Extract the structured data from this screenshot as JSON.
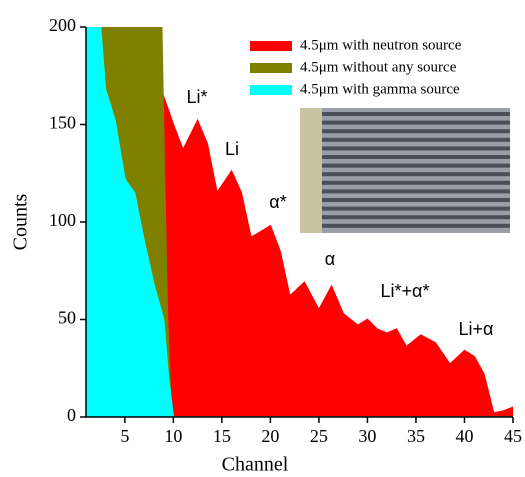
{
  "chart_data": {
    "type": "area",
    "xlabel": "Channel",
    "ylabel": "Counts",
    "xlim": [
      1,
      45
    ],
    "ylim": [
      0,
      200
    ],
    "xticks": [
      5,
      10,
      15,
      20,
      25,
      30,
      35,
      40,
      45
    ],
    "yticks": [
      0,
      50,
      100,
      150,
      200
    ],
    "legend": "upper right",
    "series": [
      {
        "name": "4.5μm with neutron source",
        "color": "#ff0000",
        "x": [
          8.8,
          10,
          11,
          12.5,
          13.5,
          14.5,
          16,
          17,
          18,
          20,
          21,
          22,
          23.5,
          25,
          26.3,
          27.5,
          29,
          30,
          31,
          32,
          33,
          34,
          35.5,
          37,
          38.5,
          40,
          41,
          42,
          43,
          44,
          45
        ],
        "values": [
          167,
          150,
          137,
          152,
          140,
          115,
          126,
          115,
          92,
          98,
          85,
          62,
          69,
          55,
          67,
          53,
          47,
          50,
          45,
          43,
          45,
          36,
          42,
          38,
          27,
          34,
          31,
          22,
          2,
          3,
          5
        ]
      },
      {
        "name": "4.5μm without any source",
        "color": "#808000",
        "x": [
          2.5,
          8.8,
          9.1,
          9.4,
          9.8
        ],
        "values": [
          200,
          200,
          120,
          50,
          0
        ]
      },
      {
        "name": "4.5μm with gamma source",
        "color": "#00ffff",
        "x": [
          1,
          2.5,
          3,
          4,
          5,
          6,
          7,
          8,
          9,
          9.5,
          10,
          45
        ],
        "values": [
          200,
          200,
          168,
          152,
          122,
          115,
          90,
          68,
          50,
          20,
          0,
          0
        ]
      }
    ],
    "annotations": [
      "Li*",
      "Li",
      "α*",
      "α",
      "Li*+α*",
      "Li+α"
    ]
  }
}
